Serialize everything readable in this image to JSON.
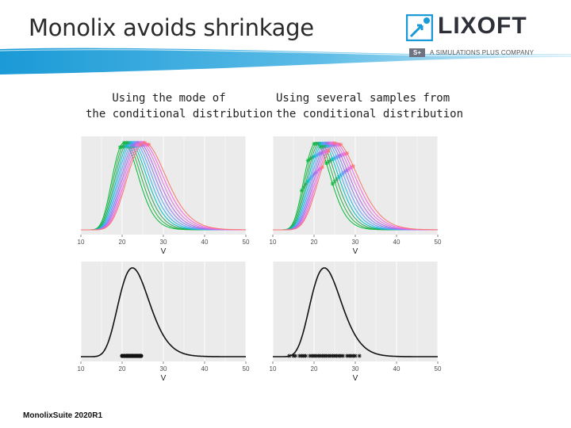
{
  "slide": {
    "title": "Monolix avoids shrinkage",
    "footer": "MonolixSuite 2020R1"
  },
  "logo": {
    "wordmark": "LIXOFT",
    "badge": "S+",
    "tagline": "A SIMULATIONS PLUS COMPANY",
    "accent_color": "#1a9ad6",
    "text_color": "#2d3038"
  },
  "captions": {
    "left_line1": "Using the mode of",
    "left_line2": "the conditional distribution",
    "right_line1": "Using several samples from",
    "right_line2": "the conditional distribution"
  },
  "chart_data": [
    {
      "id": "top-left",
      "type": "line",
      "description_source": "individual conditional distributions with mode markers",
      "xlabel": "V",
      "xlim": [
        10,
        50
      ],
      "x_ticks": [
        "10",
        "20",
        "30",
        "40",
        "50"
      ],
      "series_peaks": [
        20.5,
        21,
        21.5,
        22,
        22.5,
        23,
        23.5,
        24,
        24.5,
        25,
        25.5
      ],
      "series_colors": [
        "#00ba38",
        "#24b24a",
        "#2fa35c",
        "#00bfc4",
        "#39b0e0",
        "#619cff",
        "#8b7fe6",
        "#b066f0",
        "#d67bd6",
        "#f564e3",
        "#f8766d"
      ],
      "markers": "mode",
      "background": "#ebebeb",
      "grid": true
    },
    {
      "id": "top-right",
      "type": "line",
      "xlabel": "V",
      "xlim": [
        10,
        50
      ],
      "x_ticks": [
        "10",
        "20",
        "30",
        "40",
        "50"
      ],
      "series_peaks": [
        20.5,
        21,
        21.5,
        22,
        22.5,
        23,
        23.5,
        24,
        24.5,
        25,
        25.5
      ],
      "series_colors": [
        "#00ba38",
        "#24b24a",
        "#2fa35c",
        "#00bfc4",
        "#39b0e0",
        "#619cff",
        "#8b7fe6",
        "#b066f0",
        "#d67bd6",
        "#f564e3",
        "#f8766d"
      ],
      "markers": "samples",
      "background": "#ebebeb",
      "grid": true
    },
    {
      "id": "bottom-left",
      "type": "line",
      "xlabel": "V",
      "xlim": [
        10,
        50
      ],
      "x_ticks": [
        "10",
        "20",
        "30",
        "40",
        "50"
      ],
      "population_peak": 22.5,
      "point_values": [
        20,
        20.5,
        21,
        21.3,
        21.6,
        22,
        22.3,
        22.6,
        23,
        23.3,
        23.6,
        24,
        24.3,
        24.6
      ],
      "background": "#ebebeb",
      "grid": true
    },
    {
      "id": "bottom-right",
      "type": "line",
      "xlabel": "V",
      "xlim": [
        10,
        50
      ],
      "x_ticks": [
        "10",
        "20",
        "30",
        "40",
        "50"
      ],
      "population_peak": 22.5,
      "point_values": [
        14,
        15,
        15.5,
        16.5,
        17,
        17.5,
        18,
        19,
        19.5,
        20,
        20.5,
        21,
        21.5,
        22,
        22.5,
        23,
        23.5,
        24,
        24.5,
        25,
        25.5,
        26,
        26.5,
        27,
        28,
        28.5,
        29,
        29.5,
        30,
        31
      ],
      "background": "#ebebeb",
      "grid": true
    }
  ]
}
